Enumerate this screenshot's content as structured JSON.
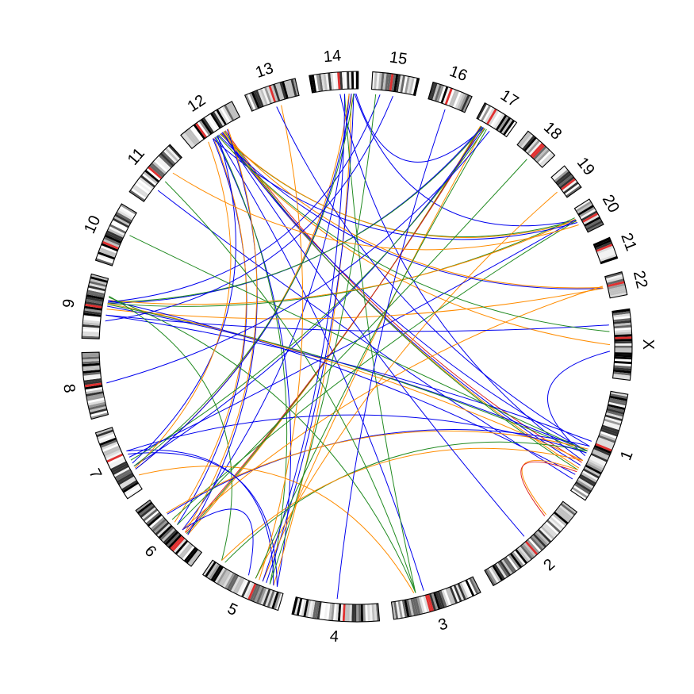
{
  "chart_data": {
    "type": "circos",
    "title": "",
    "chromosomes": [
      {
        "name": "1",
        "size": 249
      },
      {
        "name": "2",
        "size": 243
      },
      {
        "name": "3",
        "size": 198
      },
      {
        "name": "4",
        "size": 191
      },
      {
        "name": "5",
        "size": 181
      },
      {
        "name": "6",
        "size": 171
      },
      {
        "name": "7",
        "size": 159
      },
      {
        "name": "8",
        "size": 146
      },
      {
        "name": "9",
        "size": 141
      },
      {
        "name": "10",
        "size": 135
      },
      {
        "name": "11",
        "size": 135
      },
      {
        "name": "12",
        "size": 133
      },
      {
        "name": "13",
        "size": 115
      },
      {
        "name": "14",
        "size": 107
      },
      {
        "name": "15",
        "size": 102
      },
      {
        "name": "16",
        "size": 90
      },
      {
        "name": "17",
        "size": 81
      },
      {
        "name": "18",
        "size": 78
      },
      {
        "name": "19",
        "size": 59
      },
      {
        "name": "20",
        "size": 63
      },
      {
        "name": "21",
        "size": 48
      },
      {
        "name": "22",
        "size": 51
      },
      {
        "name": "X",
        "size": 155
      }
    ],
    "colors": {
      "blue": "#0000ee",
      "orange": "#ff8c00",
      "green": "#228b22",
      "red": "#dd2222",
      "band_dark": "#000000",
      "centromere": "#e03030"
    },
    "links": [
      {
        "a": [
          "12",
          0.6
        ],
        "b": [
          "1",
          0.75
        ],
        "color": "blue"
      },
      {
        "a": [
          "12",
          0.62
        ],
        "b": [
          "1",
          0.78
        ],
        "color": "orange"
      },
      {
        "a": [
          "12",
          0.64
        ],
        "b": [
          "1",
          0.8
        ],
        "color": "green"
      },
      {
        "a": [
          "12",
          0.66
        ],
        "b": [
          "1",
          0.72
        ],
        "color": "red"
      },
      {
        "a": [
          "12",
          0.58
        ],
        "b": [
          "1",
          0.6
        ],
        "color": "blue"
      },
      {
        "a": [
          "12",
          0.5
        ],
        "b": [
          "X",
          0.5
        ],
        "color": "orange"
      },
      {
        "a": [
          "12",
          0.52
        ],
        "b": [
          "22",
          0.5
        ],
        "color": "blue"
      },
      {
        "a": [
          "12",
          0.55
        ],
        "b": [
          "20",
          0.4
        ],
        "color": "green"
      },
      {
        "a": [
          "12",
          0.56
        ],
        "b": [
          "20",
          0.45
        ],
        "color": "orange"
      },
      {
        "a": [
          "12",
          0.4
        ],
        "b": [
          "6",
          0.5
        ],
        "color": "blue"
      },
      {
        "a": [
          "12",
          0.42
        ],
        "b": [
          "6",
          0.55
        ],
        "color": "orange"
      },
      {
        "a": [
          "12",
          0.44
        ],
        "b": [
          "5",
          0.1
        ],
        "color": "blue"
      },
      {
        "a": [
          "12",
          0.46
        ],
        "b": [
          "5",
          0.2
        ],
        "color": "green"
      },
      {
        "a": [
          "12",
          0.48
        ],
        "b": [
          "3",
          0.6
        ],
        "color": "blue"
      },
      {
        "a": [
          "12",
          0.5
        ],
        "b": [
          "7",
          0.4
        ],
        "color": "blue"
      },
      {
        "a": [
          "11",
          0.3
        ],
        "b": [
          "1",
          0.9
        ],
        "color": "blue"
      },
      {
        "a": [
          "14",
          0.85
        ],
        "b": [
          "5",
          0.15
        ],
        "color": "orange"
      },
      {
        "a": [
          "14",
          0.9
        ],
        "b": [
          "5",
          0.25
        ],
        "color": "blue"
      },
      {
        "a": [
          "14",
          0.8
        ],
        "b": [
          "6",
          0.4
        ],
        "color": "blue"
      },
      {
        "a": [
          "14",
          0.7
        ],
        "b": [
          "3",
          0.7
        ],
        "color": "green"
      },
      {
        "a": [
          "14",
          0.6
        ],
        "b": [
          "1",
          0.7
        ],
        "color": "blue"
      },
      {
        "a": [
          "14",
          0.95
        ],
        "b": [
          "17",
          0.3
        ],
        "color": "blue"
      },
      {
        "a": [
          "14",
          0.92
        ],
        "b": [
          "20",
          0.4
        ],
        "color": "blue"
      },
      {
        "a": [
          "14",
          0.8
        ],
        "b": [
          "7",
          0.3
        ],
        "color": "orange"
      },
      {
        "a": [
          "17",
          0.2
        ],
        "b": [
          "6",
          0.3
        ],
        "color": "orange"
      },
      {
        "a": [
          "17",
          0.22
        ],
        "b": [
          "6",
          0.32
        ],
        "color": "green"
      },
      {
        "a": [
          "17",
          0.24
        ],
        "b": [
          "6",
          0.34
        ],
        "color": "red"
      },
      {
        "a": [
          "17",
          0.25
        ],
        "b": [
          "9",
          0.6
        ],
        "color": "blue"
      },
      {
        "a": [
          "17",
          0.28
        ],
        "b": [
          "9",
          0.62
        ],
        "color": "green"
      },
      {
        "a": [
          "17",
          0.3
        ],
        "b": [
          "7",
          0.35
        ],
        "color": "blue"
      },
      {
        "a": [
          "17",
          0.32
        ],
        "b": [
          "5",
          0.3
        ],
        "color": "orange"
      },
      {
        "a": [
          "17",
          0.35
        ],
        "b": [
          "7",
          0.45
        ],
        "color": "green"
      },
      {
        "a": [
          "19",
          0.6
        ],
        "b": [
          "5",
          0.4
        ],
        "color": "orange"
      },
      {
        "a": [
          "20",
          0.3
        ],
        "b": [
          "9",
          0.6
        ],
        "color": "green"
      },
      {
        "a": [
          "20",
          0.35
        ],
        "b": [
          "9",
          0.65
        ],
        "color": "orange"
      },
      {
        "a": [
          "20",
          0.38
        ],
        "b": [
          "7",
          0.5
        ],
        "color": "blue"
      },
      {
        "a": [
          "20",
          0.42
        ],
        "b": [
          "6",
          0.6
        ],
        "color": "green"
      },
      {
        "a": [
          "20",
          0.5
        ],
        "b": [
          "12",
          0.4
        ],
        "color": "blue"
      },
      {
        "a": [
          "22",
          0.5
        ],
        "b": [
          "9",
          0.5
        ],
        "color": "orange"
      },
      {
        "a": [
          "22",
          0.4
        ],
        "b": [
          "6",
          0.4
        ],
        "color": "orange"
      },
      {
        "a": [
          "22",
          0.45
        ],
        "b": [
          "12",
          0.6
        ],
        "color": "orange"
      },
      {
        "a": [
          "X",
          0.2
        ],
        "b": [
          "9",
          0.4
        ],
        "color": "blue"
      },
      {
        "a": [
          "X",
          0.3
        ],
        "b": [
          "12",
          0.5
        ],
        "color": "green"
      },
      {
        "a": [
          "X",
          0.6
        ],
        "b": [
          "1",
          0.65
        ],
        "color": "blue"
      },
      {
        "a": [
          "9",
          0.55
        ],
        "b": [
          "1",
          0.6
        ],
        "color": "blue"
      },
      {
        "a": [
          "9",
          0.58
        ],
        "b": [
          "1",
          0.62
        ],
        "color": "green"
      },
      {
        "a": [
          "9",
          0.6
        ],
        "b": [
          "1",
          0.7
        ],
        "color": "orange"
      },
      {
        "a": [
          "9",
          0.65
        ],
        "b": [
          "1",
          0.85
        ],
        "color": "blue"
      },
      {
        "a": [
          "9",
          0.62
        ],
        "b": [
          "15",
          0.2
        ],
        "color": "blue"
      },
      {
        "a": [
          "9",
          0.7
        ],
        "b": [
          "3",
          0.7
        ],
        "color": "green"
      },
      {
        "a": [
          "9",
          0.4
        ],
        "b": [
          "1",
          0.5
        ],
        "color": "blue"
      },
      {
        "a": [
          "9",
          0.72
        ],
        "b": [
          "5",
          0.9
        ],
        "color": "green"
      },
      {
        "a": [
          "1",
          0.55
        ],
        "b": [
          "6",
          0.7
        ],
        "color": "blue"
      },
      {
        "a": [
          "1",
          0.58
        ],
        "b": [
          "6",
          0.72
        ],
        "color": "orange"
      },
      {
        "a": [
          "1",
          0.6
        ],
        "b": [
          "5",
          0.85
        ],
        "color": "green"
      },
      {
        "a": [
          "1",
          0.62
        ],
        "b": [
          "7",
          0.6
        ],
        "color": "blue"
      },
      {
        "a": [
          "1",
          0.7
        ],
        "b": [
          "5",
          0.9
        ],
        "color": "orange"
      },
      {
        "a": [
          "1",
          0.8
        ],
        "b": [
          "2",
          0.2
        ],
        "color": "orange"
      },
      {
        "a": [
          "1",
          0.82
        ],
        "b": [
          "2",
          0.22
        ],
        "color": "red"
      },
      {
        "a": [
          "3",
          0.7
        ],
        "b": [
          "11",
          0.5
        ],
        "color": "green"
      },
      {
        "a": [
          "3",
          0.72
        ],
        "b": [
          "7",
          0.2
        ],
        "color": "orange"
      },
      {
        "a": [
          "5",
          0.1
        ],
        "b": [
          "7",
          0.55
        ],
        "color": "blue"
      },
      {
        "a": [
          "5",
          0.15
        ],
        "b": [
          "7",
          0.6
        ],
        "color": "blue"
      },
      {
        "a": [
          "5",
          0.2
        ],
        "b": [
          "15",
          0.1
        ],
        "color": "green"
      },
      {
        "a": [
          "5",
          0.3
        ],
        "b": [
          "14",
          0.7
        ],
        "color": "blue"
      },
      {
        "a": [
          "5",
          0.35
        ],
        "b": [
          "13",
          0.6
        ],
        "color": "orange"
      },
      {
        "a": [
          "5",
          0.4
        ],
        "b": [
          "17",
          0.4
        ],
        "color": "green"
      },
      {
        "a": [
          "6",
          0.3
        ],
        "b": [
          "12",
          0.7
        ],
        "color": "blue"
      },
      {
        "a": [
          "6",
          0.35
        ],
        "b": [
          "12",
          0.72
        ],
        "color": "orange"
      },
      {
        "a": [
          "6",
          0.4
        ],
        "b": [
          "5",
          0.5
        ],
        "color": "blue"
      },
      {
        "a": [
          "7",
          0.3
        ],
        "b": [
          "14",
          0.85
        ],
        "color": "blue"
      },
      {
        "a": [
          "7",
          0.32
        ],
        "b": [
          "12",
          0.3
        ],
        "color": "orange"
      },
      {
        "a": [
          "7",
          0.35
        ],
        "b": [
          "14",
          0.9
        ],
        "color": "green"
      },
      {
        "a": [
          "16",
          0.5
        ],
        "b": [
          "4",
          0.5
        ],
        "color": "blue"
      },
      {
        "a": [
          "15",
          0.5
        ],
        "b": [
          "9",
          0.3
        ],
        "color": "blue"
      },
      {
        "a": [
          "13",
          0.5
        ],
        "b": [
          "1",
          0.55
        ],
        "color": "blue"
      },
      {
        "a": [
          "18",
          0.5
        ],
        "b": [
          "6",
          0.5
        ],
        "color": "green"
      },
      {
        "a": [
          "2",
          0.5
        ],
        "b": [
          "12",
          0.6
        ],
        "color": "blue"
      },
      {
        "a": [
          "11",
          0.7
        ],
        "b": [
          "20",
          0.6
        ],
        "color": "orange"
      },
      {
        "a": [
          "10",
          0.6
        ],
        "b": [
          "1",
          0.6
        ],
        "color": "green"
      },
      {
        "a": [
          "8",
          0.5
        ],
        "b": [
          "17",
          0.5
        ],
        "color": "blue"
      }
    ]
  }
}
